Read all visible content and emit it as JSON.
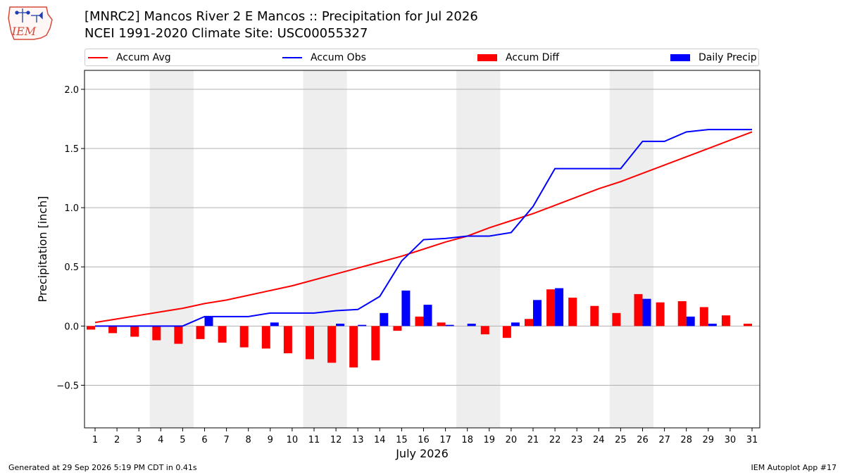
{
  "header": {
    "logo_text": "IEM",
    "title": "[MNRC2] Mancos River 2 E Mancos :: Precipitation for Jul 2026",
    "subtitle": "NCEI 1991-2020 Climate Site: USC00055327"
  },
  "footer": {
    "generated": "Generated at 29 Sep 2026 5:19 PM CDT in 0.41s",
    "app": "IEM Autoplot App #17"
  },
  "colors": {
    "avg": "#ff0000",
    "obs": "#0000ff",
    "diff": "#ff0000",
    "daily": "#0000ff",
    "weekend_shade": "#eeeeee",
    "grid": "#b0b0b0"
  },
  "chart_data": {
    "type": "bar",
    "xlabel": "July 2026",
    "ylabel": "Precipitation [inch]",
    "ylim": [
      -0.86,
      2.16
    ],
    "yticks": [
      -0.5,
      0.0,
      0.5,
      1.0,
      1.5,
      2.0
    ],
    "ytick_labels": [
      "−0.5",
      "0.0",
      "0.5",
      "1.0",
      "1.5",
      "2.0"
    ],
    "grid": "horizontal",
    "legend_position": "top",
    "weekend_shaded_days": [
      [
        4,
        5
      ],
      [
        11,
        12
      ],
      [
        18,
        19
      ],
      [
        25,
        26
      ]
    ],
    "x": [
      1,
      2,
      3,
      4,
      5,
      6,
      7,
      8,
      9,
      10,
      11,
      12,
      13,
      14,
      15,
      16,
      17,
      18,
      19,
      20,
      21,
      22,
      23,
      24,
      25,
      26,
      27,
      28,
      29,
      30,
      31
    ],
    "series": [
      {
        "name": "Accum Avg",
        "type": "line",
        "values": [
          0.03,
          0.06,
          0.09,
          0.12,
          0.15,
          0.19,
          0.22,
          0.26,
          0.3,
          0.34,
          0.39,
          0.44,
          0.49,
          0.54,
          0.59,
          0.65,
          0.71,
          0.76,
          0.83,
          0.89,
          0.95,
          1.02,
          1.09,
          1.16,
          1.22,
          1.29,
          1.36,
          1.43,
          1.5,
          1.57,
          1.64
        ]
      },
      {
        "name": "Accum Obs",
        "type": "line",
        "values": [
          0.0,
          0.0,
          0.0,
          0.0,
          0.0,
          0.08,
          0.08,
          0.08,
          0.11,
          0.11,
          0.11,
          0.13,
          0.14,
          0.25,
          0.55,
          0.73,
          0.74,
          0.76,
          0.76,
          0.79,
          1.01,
          1.33,
          1.33,
          1.33,
          1.33,
          1.56,
          1.56,
          1.64,
          1.66,
          1.66,
          1.66
        ]
      },
      {
        "name": "Accum Diff",
        "type": "bar",
        "values": [
          -0.03,
          -0.06,
          -0.09,
          -0.12,
          -0.15,
          -0.11,
          -0.14,
          -0.18,
          -0.19,
          -0.23,
          -0.28,
          -0.31,
          -0.35,
          -0.29,
          -0.04,
          0.08,
          0.03,
          0.0,
          -0.07,
          -0.1,
          0.06,
          0.31,
          0.24,
          0.17,
          0.11,
          0.27,
          0.2,
          0.21,
          0.16,
          0.09,
          0.02
        ]
      },
      {
        "name": "Daily Precip",
        "type": "bar",
        "values": [
          0.0,
          0.0,
          0.0,
          0.0,
          0.0,
          0.08,
          0.0,
          0.0,
          0.03,
          0.0,
          0.0,
          0.02,
          0.01,
          0.11,
          0.3,
          0.18,
          0.01,
          0.02,
          0.0,
          0.03,
          0.22,
          0.32,
          0.0,
          0.0,
          0.0,
          0.23,
          0.0,
          0.08,
          0.02,
          0.0,
          0.0
        ]
      }
    ]
  }
}
